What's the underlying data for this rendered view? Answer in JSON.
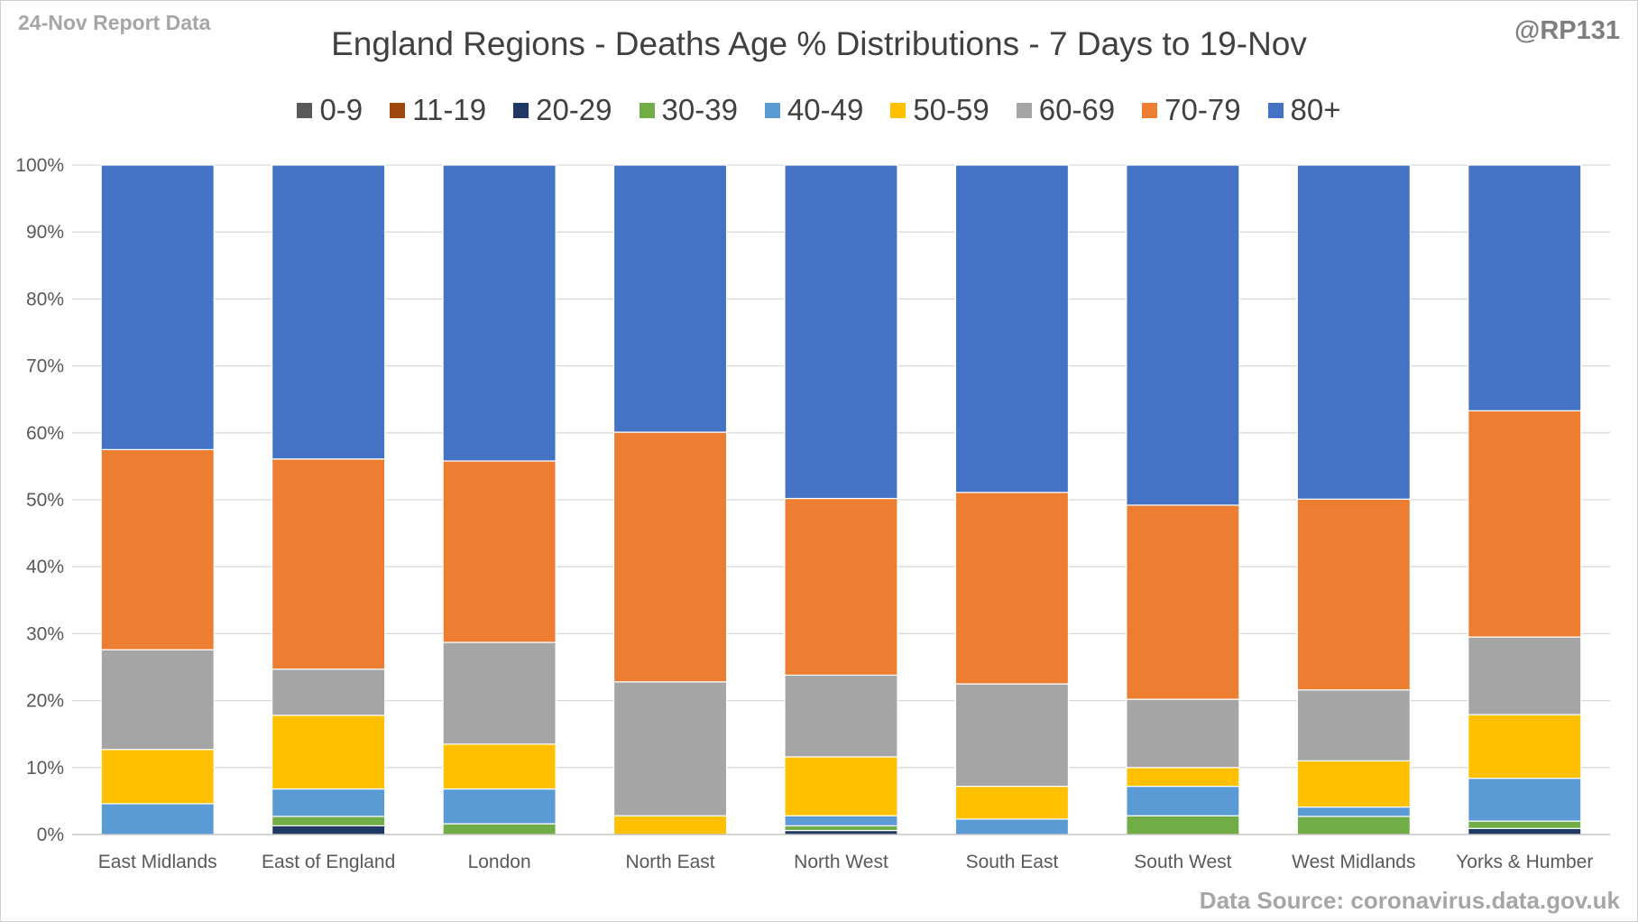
{
  "header": {
    "report_label": "24-Nov Report Data",
    "handle": "@RP131",
    "source": "Data Source: coronavirus.data.gov.uk"
  },
  "chart_data": {
    "type": "bar",
    "stacked": true,
    "percent": true,
    "title": "England Regions - Deaths Age % Distributions - 7 Days to 19-Nov",
    "xlabel": "",
    "ylabel": "",
    "ylim": [
      0,
      100
    ],
    "y_ticks": [
      "0%",
      "10%",
      "20%",
      "30%",
      "40%",
      "50%",
      "60%",
      "70%",
      "80%",
      "90%",
      "100%"
    ],
    "grid": true,
    "legend_position": "top",
    "categories": [
      "East Midlands",
      "East of England",
      "London",
      "North East",
      "North West",
      "South East",
      "South West",
      "West Midlands",
      "Yorks & Humber"
    ],
    "series": [
      {
        "name": "0-9",
        "color": "#595959",
        "values": [
          0,
          0,
          0,
          0,
          0,
          0,
          0,
          0,
          0
        ]
      },
      {
        "name": "11-19",
        "color": "#9e480e",
        "values": [
          0,
          0,
          0,
          0,
          0,
          0,
          0,
          0,
          0
        ]
      },
      {
        "name": "20-29",
        "color": "#203864",
        "values": [
          0,
          1.3,
          0,
          0,
          0.6,
          0,
          0,
          0,
          0.9
        ]
      },
      {
        "name": "30-39",
        "color": "#70ad47",
        "values": [
          0,
          1.4,
          1.6,
          0,
          0.7,
          0,
          2.8,
          2.7,
          1.1
        ]
      },
      {
        "name": "40-49",
        "color": "#5b9bd5",
        "values": [
          4.6,
          4.1,
          5.2,
          0,
          1.5,
          2.3,
          4.4,
          1.4,
          6.4
        ]
      },
      {
        "name": "50-59",
        "color": "#ffc000",
        "values": [
          8.1,
          11.0,
          6.7,
          2.8,
          8.8,
          4.9,
          2.8,
          6.9,
          9.5
        ]
      },
      {
        "name": "60-69",
        "color": "#a5a5a5",
        "values": [
          14.9,
          6.9,
          15.2,
          20.0,
          12.2,
          15.3,
          10.2,
          10.6,
          11.6
        ]
      },
      {
        "name": "70-79",
        "color": "#ed7d31",
        "values": [
          29.9,
          31.4,
          27.1,
          37.3,
          26.4,
          28.6,
          29.0,
          28.5,
          33.8
        ]
      },
      {
        "name": "80+",
        "color": "#4472c4",
        "values": [
          42.5,
          43.9,
          44.2,
          39.9,
          49.8,
          48.9,
          50.8,
          49.9,
          36.7
        ]
      }
    ]
  }
}
